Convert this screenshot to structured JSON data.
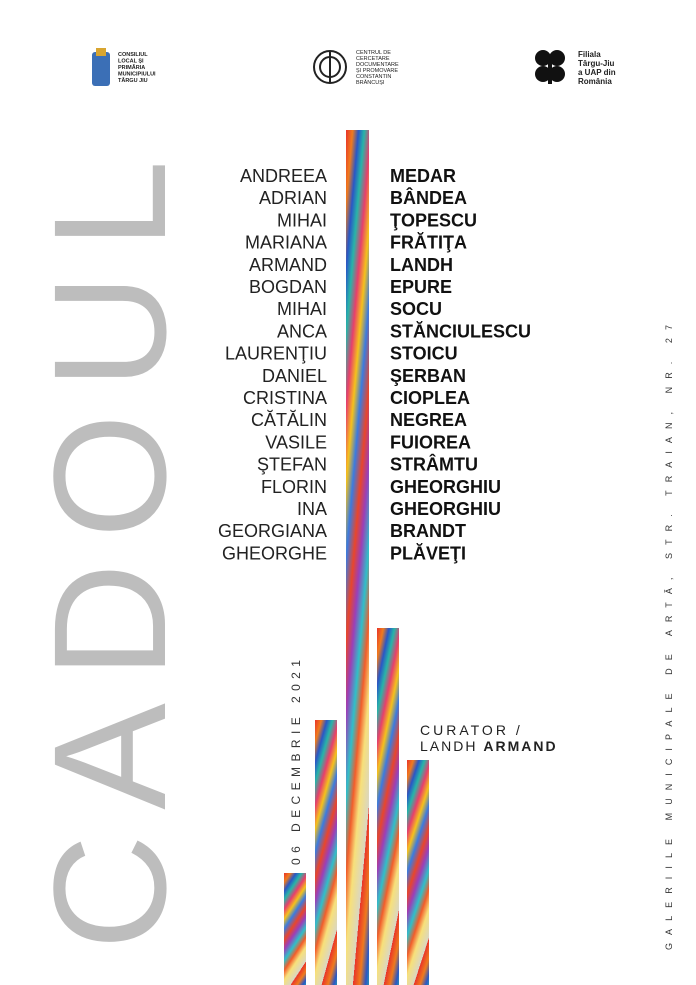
{
  "header": {
    "left_logo": [
      "CONSILIUL",
      "LOCAL ȘI",
      "PRIMĂRIA",
      "MUNICIPIULUI",
      "TÂRGU JIU"
    ],
    "center_logo": [
      "CENTRUL DE",
      "CERCETARE",
      "DOCUMENTARE",
      "ȘI PROMOVARE",
      "CONSTANTIN",
      "BRÂNCUȘI"
    ],
    "right_logo": [
      "Filiala",
      "Târgu-Jiu",
      "a UAP din",
      "România"
    ]
  },
  "title": "CADOUL",
  "artists": [
    {
      "first": "ANDREEA",
      "last": "MEDAR"
    },
    {
      "first": "ADRIAN",
      "last": "BÂNDEA"
    },
    {
      "first": "MIHAI",
      "last": "ŢOPESCU"
    },
    {
      "first": "MARIANA",
      "last": "FRĂTIŢA"
    },
    {
      "first": "ARMAND",
      "last": "LANDH"
    },
    {
      "first": "BOGDAN",
      "last": "EPURE"
    },
    {
      "first": "MIHAI",
      "last": "SOCU"
    },
    {
      "first": "ANCA",
      "last": "STĂNCIULESCU"
    },
    {
      "first": "LAURENŢIU",
      "last": "STOICU"
    },
    {
      "first": "DANIEL",
      "last": "ŞERBAN"
    },
    {
      "first": "CRISTINA",
      "last": "CIOPLEA"
    },
    {
      "first": "CĂTĂLIN",
      "last": "NEGREA"
    },
    {
      "first": "VASILE",
      "last": "FUIOREA"
    },
    {
      "first": "ŞTEFAN",
      "last": "STRÂMTU"
    },
    {
      "first": "FLORIN",
      "last": "GHEORGHIU"
    },
    {
      "first": "INA",
      "last": "GHEORGHIU"
    },
    {
      "first": "GEORGIANA",
      "last": "BRANDT"
    },
    {
      "first": "GHEORGHE",
      "last": "PLĂVEŢI"
    }
  ],
  "date": "06 DECEMBRIE 2021",
  "curator": {
    "label": "CURATOR /",
    "surname": "LANDH",
    "name": "ARMAND"
  },
  "venue": "GALERIILE MUNICIPALE DE ARTĂ, STR. TRAIAN, NR. 27"
}
